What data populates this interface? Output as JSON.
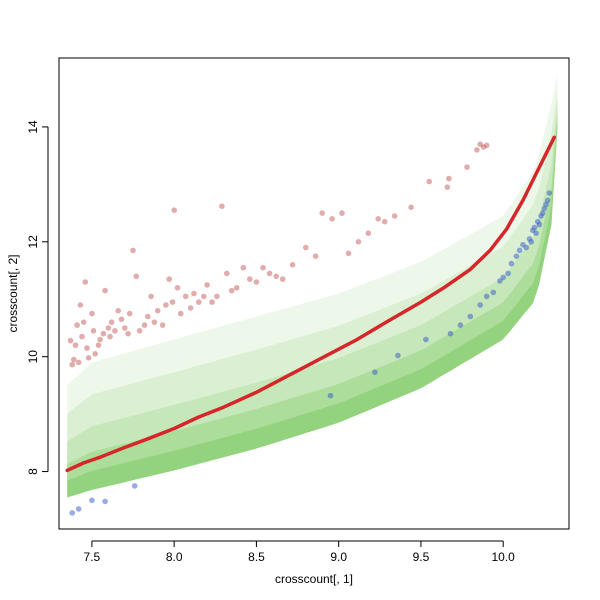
{
  "chart_data": {
    "type": "scatter",
    "title": "",
    "xlabel": "crosscount[, 1]",
    "ylabel": "crosscount[, 2]",
    "xlim": [
      7.3,
      10.4
    ],
    "ylim": [
      7.0,
      15.2
    ],
    "xticks": [
      7.5,
      8.0,
      8.5,
      9.0,
      9.5,
      10.0
    ],
    "xtick_labels": [
      "7.5",
      "8.0",
      "8.5",
      "9.0",
      "9.5",
      "10.0"
    ],
    "yticks": [
      8,
      10,
      12,
      14
    ],
    "ytick_labels": [
      "8",
      "10",
      "12",
      "14"
    ],
    "grid": false,
    "legend": "none",
    "colors": {
      "background_cloud": "#55bb33",
      "upper_outliers": "#c45a5a",
      "lower_outliers": "#3355cc",
      "trend_line": "#d7262a",
      "box": "#000000"
    },
    "series": [
      {
        "kind": "density_cloud",
        "color": "#55bb33",
        "lower_edge": [
          [
            7.35,
            7.55
          ],
          [
            7.5,
            7.68
          ],
          [
            8.0,
            8.02
          ],
          [
            8.5,
            8.4
          ],
          [
            9.0,
            8.85
          ],
          [
            9.5,
            9.45
          ],
          [
            10.0,
            10.3
          ],
          [
            10.2,
            11.0
          ],
          [
            10.3,
            12.4
          ],
          [
            10.33,
            14.0
          ]
        ],
        "upper_edge": [
          [
            7.35,
            9.5
          ],
          [
            7.5,
            9.9
          ],
          [
            8.0,
            10.3
          ],
          [
            8.5,
            10.7
          ],
          [
            9.0,
            11.1
          ],
          [
            9.5,
            11.65
          ],
          [
            10.0,
            12.45
          ],
          [
            10.2,
            13.3
          ],
          [
            10.3,
            14.5
          ],
          [
            10.33,
            14.9
          ]
        ]
      },
      {
        "kind": "points",
        "color": "#c45a5a",
        "values": [
          [
            7.37,
            10.28
          ],
          [
            7.38,
            9.86
          ],
          [
            7.39,
            9.95
          ],
          [
            7.4,
            10.2
          ],
          [
            7.41,
            10.55
          ],
          [
            7.42,
            9.9
          ],
          [
            7.43,
            10.9
          ],
          [
            7.44,
            10.35
          ],
          [
            7.45,
            10.6
          ],
          [
            7.46,
            11.3
          ],
          [
            7.47,
            10.15
          ],
          [
            7.48,
            9.98
          ],
          [
            7.5,
            10.75
          ],
          [
            7.51,
            10.45
          ],
          [
            7.52,
            10.05
          ],
          [
            7.54,
            10.2
          ],
          [
            7.55,
            10.3
          ],
          [
            7.57,
            10.4
          ],
          [
            7.58,
            11.15
          ],
          [
            7.6,
            10.5
          ],
          [
            7.61,
            10.35
          ],
          [
            7.62,
            10.6
          ],
          [
            7.64,
            10.45
          ],
          [
            7.66,
            10.8
          ],
          [
            7.68,
            10.65
          ],
          [
            7.7,
            10.5
          ],
          [
            7.72,
            10.4
          ],
          [
            7.73,
            10.75
          ],
          [
            7.75,
            11.85
          ],
          [
            7.77,
            11.4
          ],
          [
            7.79,
            10.45
          ],
          [
            7.82,
            10.55
          ],
          [
            7.84,
            10.7
          ],
          [
            7.86,
            11.05
          ],
          [
            7.88,
            10.6
          ],
          [
            7.9,
            10.8
          ],
          [
            7.93,
            10.55
          ],
          [
            7.95,
            10.9
          ],
          [
            7.97,
            11.35
          ],
          [
            7.99,
            10.95
          ],
          [
            8.0,
            12.55
          ],
          [
            8.02,
            11.2
          ],
          [
            8.04,
            10.75
          ],
          [
            8.07,
            11.05
          ],
          [
            8.1,
            10.85
          ],
          [
            8.12,
            11.1
          ],
          [
            8.15,
            10.95
          ],
          [
            8.18,
            11.05
          ],
          [
            8.2,
            11.25
          ],
          [
            8.23,
            10.95
          ],
          [
            8.26,
            11.05
          ],
          [
            8.29,
            12.62
          ],
          [
            8.32,
            11.45
          ],
          [
            8.35,
            11.15
          ],
          [
            8.38,
            11.2
          ],
          [
            8.42,
            11.55
          ],
          [
            8.46,
            11.35
          ],
          [
            8.5,
            11.3
          ],
          [
            8.54,
            11.55
          ],
          [
            8.58,
            11.45
          ],
          [
            8.62,
            11.4
          ],
          [
            8.66,
            11.35
          ],
          [
            8.72,
            11.6
          ],
          [
            8.8,
            11.9
          ],
          [
            8.86,
            11.75
          ],
          [
            8.9,
            12.5
          ],
          [
            8.96,
            12.4
          ],
          [
            9.02,
            12.5
          ],
          [
            9.06,
            11.8
          ],
          [
            9.12,
            12.0
          ],
          [
            9.18,
            12.15
          ],
          [
            9.24,
            12.4
          ],
          [
            9.28,
            12.35
          ],
          [
            9.34,
            12.45
          ],
          [
            9.44,
            12.6
          ],
          [
            9.55,
            13.05
          ],
          [
            9.66,
            12.95
          ],
          [
            9.67,
            13.1
          ],
          [
            9.78,
            13.3
          ],
          [
            9.84,
            13.6
          ],
          [
            9.86,
            13.7
          ],
          [
            9.88,
            13.65
          ],
          [
            9.9,
            13.68
          ]
        ]
      },
      {
        "kind": "points",
        "color": "#3355cc",
        "values": [
          [
            7.38,
            7.28
          ],
          [
            7.42,
            7.35
          ],
          [
            7.5,
            7.5
          ],
          [
            7.58,
            7.48
          ],
          [
            7.76,
            7.75
          ],
          [
            8.95,
            9.32
          ],
          [
            9.22,
            9.73
          ],
          [
            9.36,
            10.02
          ],
          [
            9.53,
            10.3
          ],
          [
            9.68,
            10.4
          ],
          [
            9.74,
            10.55
          ],
          [
            9.8,
            10.7
          ],
          [
            9.86,
            10.9
          ],
          [
            9.9,
            11.05
          ],
          [
            9.94,
            11.12
          ],
          [
            9.98,
            11.32
          ],
          [
            10.0,
            11.38
          ],
          [
            10.03,
            11.45
          ],
          [
            10.05,
            11.62
          ],
          [
            10.08,
            11.75
          ],
          [
            10.1,
            11.85
          ],
          [
            10.12,
            11.95
          ],
          [
            10.14,
            11.9
          ],
          [
            10.16,
            12.05
          ],
          [
            10.17,
            12.0
          ],
          [
            10.18,
            12.2
          ],
          [
            10.19,
            12.25
          ],
          [
            10.2,
            12.15
          ],
          [
            10.21,
            12.35
          ],
          [
            10.22,
            12.3
          ],
          [
            10.23,
            12.45
          ],
          [
            10.24,
            12.5
          ],
          [
            10.25,
            12.58
          ],
          [
            10.26,
            12.65
          ],
          [
            10.27,
            12.72
          ],
          [
            10.28,
            12.85
          ]
        ]
      },
      {
        "kind": "line",
        "color": "#d7262a",
        "values": [
          [
            7.35,
            8.02
          ],
          [
            7.45,
            8.15
          ],
          [
            7.55,
            8.25
          ],
          [
            7.7,
            8.42
          ],
          [
            7.85,
            8.58
          ],
          [
            8.0,
            8.75
          ],
          [
            8.15,
            8.95
          ],
          [
            8.3,
            9.12
          ],
          [
            8.5,
            9.38
          ],
          [
            8.7,
            9.68
          ],
          [
            8.9,
            9.98
          ],
          [
            9.1,
            10.28
          ],
          [
            9.3,
            10.62
          ],
          [
            9.5,
            10.95
          ],
          [
            9.65,
            11.22
          ],
          [
            9.8,
            11.52
          ],
          [
            9.92,
            11.85
          ],
          [
            10.02,
            12.22
          ],
          [
            10.12,
            12.72
          ],
          [
            10.22,
            13.3
          ],
          [
            10.31,
            13.82
          ]
        ]
      }
    ]
  }
}
